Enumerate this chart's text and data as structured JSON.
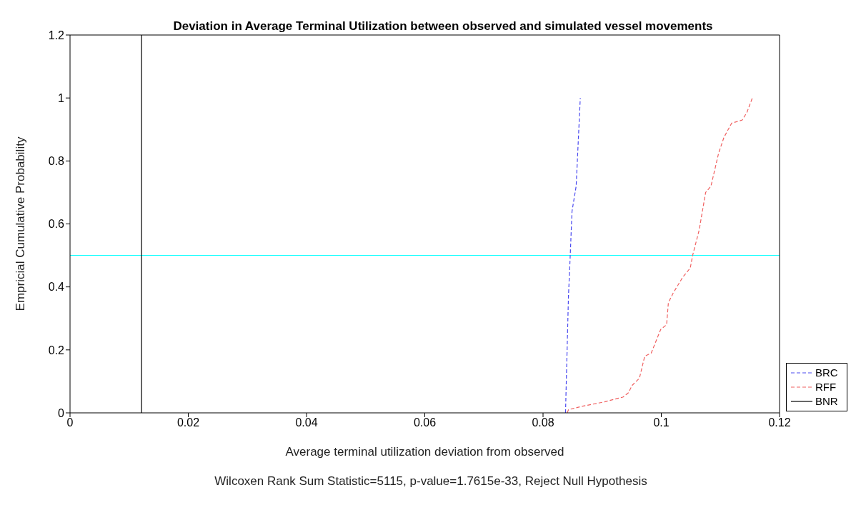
{
  "chart_data": {
    "type": "line",
    "title": "Deviation in Average Terminal Utilization between observed and simulated vessel movements",
    "xlabel": "Average terminal utilization deviation from observed",
    "ylabel": "Empricial Cumulative Probability",
    "annotations": [
      "Wilcoxen Rank Sum Statistic=5115, p-value=1.7615e-33, Reject Null Hypothesis"
    ],
    "xlim": [
      0,
      0.12
    ],
    "xticks": [
      0,
      0.02,
      0.04,
      0.06,
      0.08,
      0.1,
      0.12
    ],
    "ylim": [
      0,
      1.2
    ],
    "yticks": [
      0,
      0.2,
      0.4,
      0.6,
      0.8,
      1,
      1.2
    ],
    "legend": "bottom right",
    "marker": "none",
    "ref_lines": [
      {
        "axis": "y",
        "value": 0.5,
        "color": "#00ffff"
      }
    ],
    "series": [
      {
        "name": "BRC",
        "color": "#4a4af0",
        "line_style": "dashed",
        "x": [
          0.0838,
          0.0843,
          0.0846,
          0.0849,
          0.0856,
          0.0863
        ],
        "values": [
          0,
          0.37,
          0.5,
          0.64,
          0.72,
          1
        ]
      },
      {
        "name": "RFF",
        "color": "#f06060",
        "line_style": "dashed",
        "x": [
          0.0841,
          0.0843,
          0.0864,
          0.0904,
          0.0935,
          0.0944,
          0.0951,
          0.0963,
          0.0972,
          0.0983,
          0.0999,
          0.1009,
          0.1012,
          0.102,
          0.1036,
          0.1049,
          0.1053,
          0.1064,
          0.1075,
          0.1084,
          0.1097,
          0.1106,
          0.1119,
          0.1137,
          0.1145,
          0.1154
        ],
        "values": [
          0,
          0.01,
          0.02,
          0.035,
          0.05,
          0.063,
          0.088,
          0.11,
          0.18,
          0.19,
          0.265,
          0.28,
          0.35,
          0.38,
          0.43,
          0.46,
          0.5,
          0.58,
          0.7,
          0.72,
          0.825,
          0.875,
          0.92,
          0.93,
          0.955,
          1
        ]
      },
      {
        "name": "BNR",
        "color": "#000000",
        "line_style": "solid",
        "x": [
          0.0121,
          0.0121
        ],
        "values": [
          0,
          1.2
        ]
      }
    ]
  }
}
